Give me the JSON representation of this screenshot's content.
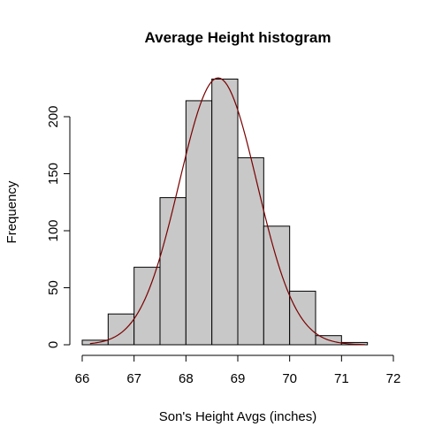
{
  "chart_data": {
    "type": "bar",
    "title": "Average Height histogram",
    "xlabel": "Son's Height Avgs (inches)",
    "ylabel": "Frequency",
    "xlim": [
      66,
      72
    ],
    "ylim": [
      0,
      240
    ],
    "x_ticks": [
      66,
      67,
      68,
      69,
      70,
      71,
      72
    ],
    "y_ticks": [
      0,
      50,
      100,
      150,
      200
    ],
    "bins": [
      {
        "from": 66.0,
        "to": 66.5,
        "count": 4
      },
      {
        "from": 66.5,
        "to": 67.0,
        "count": 27
      },
      {
        "from": 67.0,
        "to": 67.5,
        "count": 68
      },
      {
        "from": 67.5,
        "to": 68.0,
        "count": 129
      },
      {
        "from": 68.0,
        "to": 68.5,
        "count": 214
      },
      {
        "from": 68.5,
        "to": 69.0,
        "count": 233
      },
      {
        "from": 69.0,
        "to": 69.5,
        "count": 164
      },
      {
        "from": 69.5,
        "to": 70.0,
        "count": 104
      },
      {
        "from": 70.0,
        "to": 70.5,
        "count": 47
      },
      {
        "from": 70.5,
        "to": 71.0,
        "count": 8
      },
      {
        "from": 71.0,
        "to": 71.5,
        "count": 2
      },
      {
        "from": 71.5,
        "to": 72.0,
        "count": 0
      }
    ],
    "density_curve": {
      "mean": 68.62,
      "peak": 234,
      "sd": 0.75,
      "x_range": [
        66.15,
        71.45
      ],
      "color": "#7a0000"
    },
    "bar_fill": "#c8c8c8",
    "grid": false
  }
}
